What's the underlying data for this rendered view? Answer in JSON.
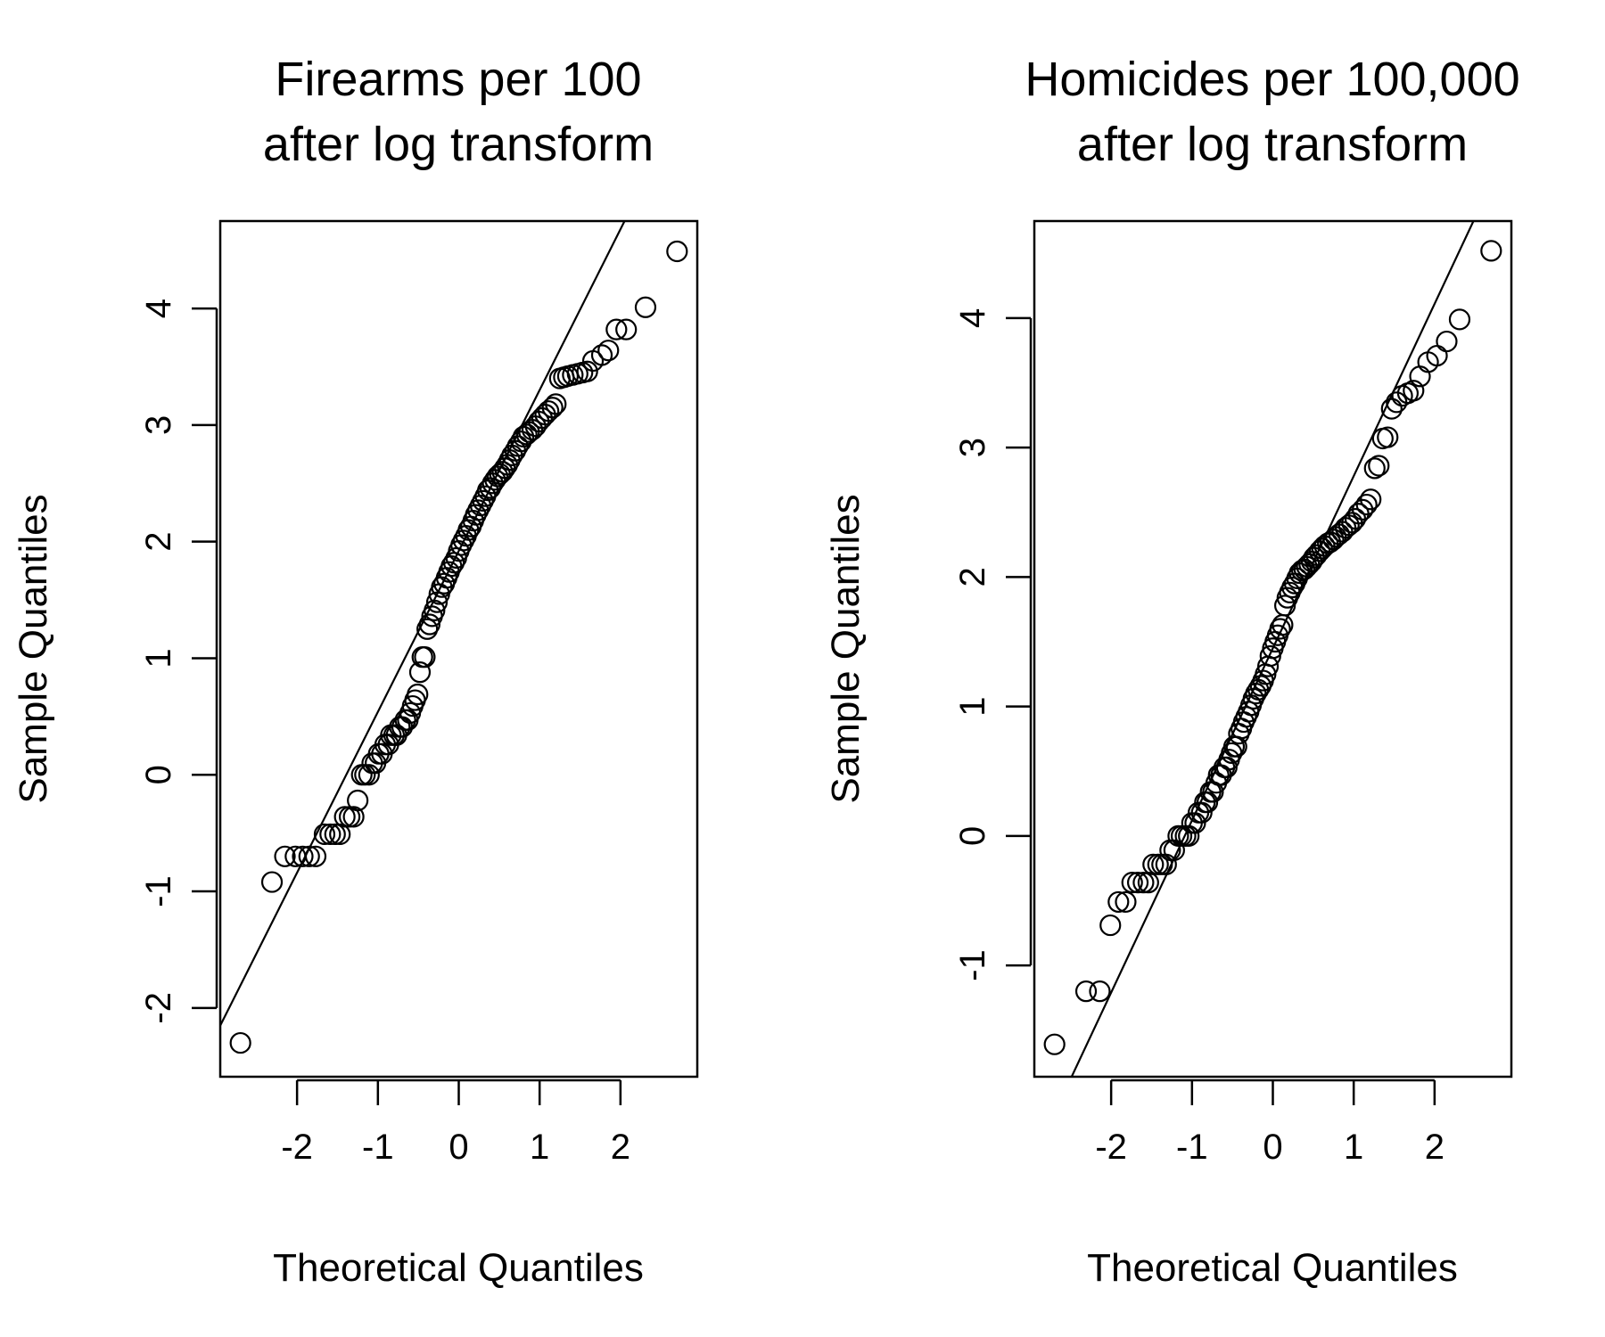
{
  "chart_data": [
    {
      "type": "scatter",
      "title": [
        "Firearms per 100",
        "after log transform"
      ],
      "xlabel": "Theoretical Quantiles",
      "ylabel": "Sample Quantiles",
      "xlim": [
        -2.95,
        2.95
      ],
      "ylim": [
        -2.59,
        4.75
      ],
      "xticks": [
        -2,
        -1,
        0,
        1,
        2
      ],
      "yticks": [
        -2,
        -1,
        0,
        1,
        2,
        3,
        4
      ],
      "xtick_labels": [
        "-2",
        "-1",
        "0",
        "1",
        "2"
      ],
      "ytick_labels": [
        "-2",
        "-1",
        "0",
        "1",
        "2",
        "3",
        "4"
      ],
      "reference_line": {
        "slope": 1.38,
        "intercept": 1.92
      },
      "points": [
        [
          -2.7,
          -2.3
        ],
        [
          -2.31,
          -0.92
        ],
        [
          -2.15,
          -0.7
        ],
        [
          -2.02,
          -0.7
        ],
        [
          -1.93,
          -0.7
        ],
        [
          -1.85,
          -0.7
        ],
        [
          -1.77,
          -0.7
        ],
        [
          -1.66,
          -0.51
        ],
        [
          -1.59,
          -0.51
        ],
        [
          -1.53,
          -0.51
        ],
        [
          -1.47,
          -0.51
        ],
        [
          -1.41,
          -0.36
        ],
        [
          -1.35,
          -0.36
        ],
        [
          -1.3,
          -0.36
        ],
        [
          -1.25,
          -0.22
        ],
        [
          -1.2,
          0.0
        ],
        [
          -1.16,
          0.0
        ],
        [
          -1.11,
          0.0
        ],
        [
          -1.07,
          0.1
        ],
        [
          -1.03,
          0.1
        ],
        [
          -0.99,
          0.18
        ],
        [
          -0.95,
          0.18
        ],
        [
          -0.91,
          0.26
        ],
        [
          -0.87,
          0.26
        ],
        [
          -0.84,
          0.34
        ],
        [
          -0.8,
          0.34
        ],
        [
          -0.77,
          0.34
        ],
        [
          -0.73,
          0.41
        ],
        [
          -0.7,
          0.41
        ],
        [
          -0.66,
          0.47
        ],
        [
          -0.63,
          0.47
        ],
        [
          -0.6,
          0.53
        ],
        [
          -0.57,
          0.59
        ],
        [
          -0.54,
          0.64
        ],
        [
          -0.51,
          0.69
        ],
        [
          -0.48,
          0.88
        ],
        [
          -0.45,
          1.01
        ],
        [
          -0.42,
          1.01
        ],
        [
          -0.39,
          1.25
        ],
        [
          -0.36,
          1.29
        ],
        [
          -0.33,
          1.36
        ],
        [
          -0.3,
          1.41
        ],
        [
          -0.27,
          1.48
        ],
        [
          -0.24,
          1.55
        ],
        [
          -0.21,
          1.61
        ],
        [
          -0.18,
          1.64
        ],
        [
          -0.15,
          1.69
        ],
        [
          -0.12,
          1.74
        ],
        [
          -0.09,
          1.79
        ],
        [
          -0.06,
          1.82
        ],
        [
          -0.03,
          1.86
        ],
        [
          0.0,
          1.92
        ],
        [
          0.03,
          1.97
        ],
        [
          0.06,
          2.01
        ],
        [
          0.09,
          2.05
        ],
        [
          0.12,
          2.1
        ],
        [
          0.15,
          2.13
        ],
        [
          0.18,
          2.18
        ],
        [
          0.21,
          2.23
        ],
        [
          0.24,
          2.27
        ],
        [
          0.27,
          2.31
        ],
        [
          0.3,
          2.35
        ],
        [
          0.33,
          2.39
        ],
        [
          0.36,
          2.44
        ],
        [
          0.39,
          2.46
        ],
        [
          0.42,
          2.5
        ],
        [
          0.45,
          2.53
        ],
        [
          0.48,
          2.56
        ],
        [
          0.51,
          2.58
        ],
        [
          0.54,
          2.6
        ],
        [
          0.57,
          2.63
        ],
        [
          0.6,
          2.66
        ],
        [
          0.63,
          2.7
        ],
        [
          0.66,
          2.74
        ],
        [
          0.7,
          2.78
        ],
        [
          0.73,
          2.82
        ],
        [
          0.77,
          2.86
        ],
        [
          0.8,
          2.9
        ],
        [
          0.84,
          2.92
        ],
        [
          0.87,
          2.94
        ],
        [
          0.91,
          2.96
        ],
        [
          0.95,
          2.99
        ],
        [
          0.99,
          3.03
        ],
        [
          1.03,
          3.06
        ],
        [
          1.07,
          3.09
        ],
        [
          1.11,
          3.12
        ],
        [
          1.16,
          3.15
        ],
        [
          1.2,
          3.18
        ],
        [
          1.25,
          3.4
        ],
        [
          1.3,
          3.41
        ],
        [
          1.35,
          3.42
        ],
        [
          1.41,
          3.43
        ],
        [
          1.47,
          3.44
        ],
        [
          1.53,
          3.45
        ],
        [
          1.59,
          3.46
        ],
        [
          1.66,
          3.55
        ],
        [
          1.77,
          3.6
        ],
        [
          1.85,
          3.64
        ],
        [
          1.95,
          3.82
        ],
        [
          2.07,
          3.82
        ],
        [
          2.31,
          4.01
        ],
        [
          2.7,
          4.49
        ]
      ]
    },
    {
      "type": "scatter",
      "title": [
        "Homicides per 100,000",
        "after log transform"
      ],
      "xlabel": "Theoretical Quantiles",
      "ylabel": "Sample Quantiles",
      "xlim": [
        -2.95,
        2.95
      ],
      "ylim": [
        -1.86,
        4.75
      ],
      "xticks": [
        -2,
        -1,
        0,
        1,
        2
      ],
      "yticks": [
        -1,
        0,
        1,
        2,
        3,
        4
      ],
      "xtick_labels": [
        "-2",
        "-1",
        "0",
        "1",
        "2"
      ],
      "ytick_labels": [
        "-1",
        "0",
        "1",
        "2",
        "3",
        "4"
      ],
      "reference_line": {
        "slope": 1.33,
        "intercept": 1.45
      },
      "points": [
        [
          -2.7,
          -1.61
        ],
        [
          -2.31,
          -1.2
        ],
        [
          -2.14,
          -1.2
        ],
        [
          -2.01,
          -0.69
        ],
        [
          -1.91,
          -0.51
        ],
        [
          -1.82,
          -0.51
        ],
        [
          -1.74,
          -0.36
        ],
        [
          -1.67,
          -0.36
        ],
        [
          -1.6,
          -0.36
        ],
        [
          -1.54,
          -0.36
        ],
        [
          -1.48,
          -0.22
        ],
        [
          -1.42,
          -0.22
        ],
        [
          -1.37,
          -0.22
        ],
        [
          -1.32,
          -0.22
        ],
        [
          -1.27,
          -0.11
        ],
        [
          -1.22,
          -0.11
        ],
        [
          -1.17,
          0.0
        ],
        [
          -1.13,
          0.0
        ],
        [
          -1.08,
          0.0
        ],
        [
          -1.04,
          0.0
        ],
        [
          -1.0,
          0.1
        ],
        [
          -0.96,
          0.1
        ],
        [
          -0.92,
          0.18
        ],
        [
          -0.88,
          0.18
        ],
        [
          -0.84,
          0.26
        ],
        [
          -0.81,
          0.26
        ],
        [
          -0.77,
          0.34
        ],
        [
          -0.74,
          0.34
        ],
        [
          -0.7,
          0.41
        ],
        [
          -0.67,
          0.47
        ],
        [
          -0.64,
          0.47
        ],
        [
          -0.6,
          0.53
        ],
        [
          -0.57,
          0.53
        ],
        [
          -0.54,
          0.59
        ],
        [
          -0.51,
          0.64
        ],
        [
          -0.48,
          0.69
        ],
        [
          -0.45,
          0.69
        ],
        [
          -0.42,
          0.79
        ],
        [
          -0.39,
          0.83
        ],
        [
          -0.36,
          0.88
        ],
        [
          -0.33,
          0.92
        ],
        [
          -0.3,
          0.96
        ],
        [
          -0.27,
          1.01
        ],
        [
          -0.24,
          1.06
        ],
        [
          -0.21,
          1.1
        ],
        [
          -0.18,
          1.13
        ],
        [
          -0.15,
          1.16
        ],
        [
          -0.12,
          1.2
        ],
        [
          -0.09,
          1.25
        ],
        [
          -0.06,
          1.31
        ],
        [
          -0.03,
          1.39
        ],
        [
          0.0,
          1.45
        ],
        [
          0.03,
          1.5
        ],
        [
          0.06,
          1.55
        ],
        [
          0.09,
          1.6
        ],
        [
          0.12,
          1.63
        ],
        [
          0.15,
          1.78
        ],
        [
          0.18,
          1.84
        ],
        [
          0.21,
          1.88
        ],
        [
          0.24,
          1.92
        ],
        [
          0.27,
          1.95
        ],
        [
          0.3,
          1.99
        ],
        [
          0.33,
          2.03
        ],
        [
          0.36,
          2.05
        ],
        [
          0.39,
          2.06
        ],
        [
          0.42,
          2.08
        ],
        [
          0.45,
          2.1
        ],
        [
          0.48,
          2.12
        ],
        [
          0.51,
          2.15
        ],
        [
          0.54,
          2.17
        ],
        [
          0.58,
          2.2
        ],
        [
          0.61,
          2.22
        ],
        [
          0.64,
          2.24
        ],
        [
          0.68,
          2.26
        ],
        [
          0.71,
          2.27
        ],
        [
          0.75,
          2.29
        ],
        [
          0.78,
          2.31
        ],
        [
          0.82,
          2.33
        ],
        [
          0.86,
          2.35
        ],
        [
          0.9,
          2.38
        ],
        [
          0.94,
          2.4
        ],
        [
          0.98,
          2.42
        ],
        [
          1.02,
          2.45
        ],
        [
          1.06,
          2.49
        ],
        [
          1.11,
          2.52
        ],
        [
          1.16,
          2.56
        ],
        [
          1.21,
          2.6
        ],
        [
          1.26,
          2.84
        ],
        [
          1.31,
          2.86
        ],
        [
          1.36,
          3.07
        ],
        [
          1.42,
          3.08
        ],
        [
          1.47,
          3.3
        ],
        [
          1.53,
          3.35
        ],
        [
          1.6,
          3.4
        ],
        [
          1.67,
          3.42
        ],
        [
          1.74,
          3.44
        ],
        [
          1.82,
          3.55
        ],
        [
          1.92,
          3.66
        ],
        [
          2.03,
          3.71
        ],
        [
          2.15,
          3.82
        ],
        [
          2.31,
          3.99
        ],
        [
          2.7,
          4.52
        ]
      ]
    }
  ]
}
